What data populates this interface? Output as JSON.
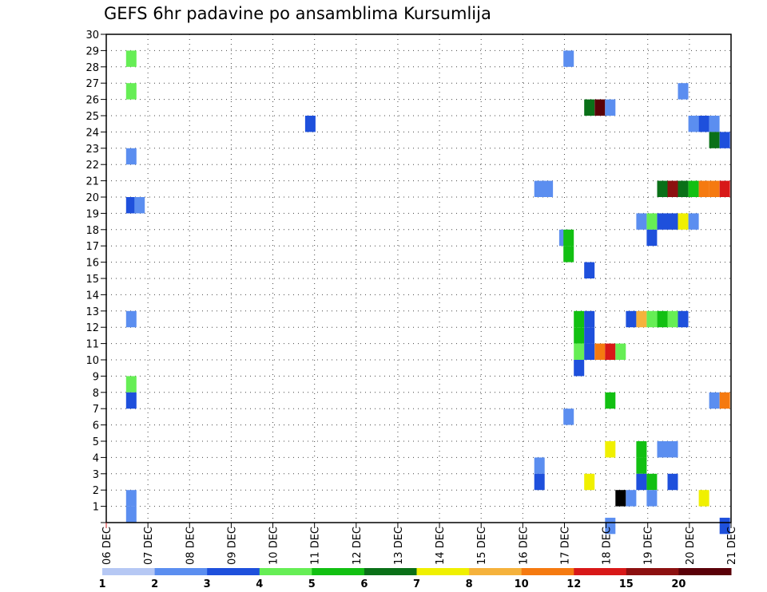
{
  "chart_data": {
    "type": "heatmap",
    "title": "GEFS 6hr padavine po ansamblima Kursumlija",
    "x_categories": [
      "06 DEC",
      "07 DEC",
      "08 DEC",
      "09 DEC",
      "10 DEC",
      "11 DEC",
      "12 DEC",
      "13 DEC",
      "14 DEC",
      "15 DEC",
      "16 DEC",
      "17 DEC",
      "18 DEC",
      "19 DEC",
      "20 DEC",
      "21 DEC"
    ],
    "y_labels": [
      "1",
      "2",
      "3",
      "4",
      "5",
      "6",
      "7",
      "8",
      "9",
      "10",
      "11",
      "12",
      "13",
      "14",
      "15",
      "16",
      "17",
      "18",
      "19",
      "20",
      "21",
      "22",
      "23",
      "24",
      "25",
      "26",
      "27",
      "28",
      "29",
      "30"
    ],
    "ylim": [
      0,
      30
    ],
    "xlim_days": [
      0,
      15
    ],
    "step_days": 0.25,
    "grid": true,
    "legend": {
      "placement": "bottom",
      "colors": [
        "#b6c8f4",
        "#5b8ef0",
        "#1e50dc",
        "#66ee55",
        "#12c012",
        "#0a7018",
        "#f0f000",
        "#f5b23c",
        "#f57a10",
        "#d81818",
        "#8c1010",
        "#5a0008"
      ],
      "labels": [
        "1",
        "2",
        "3",
        "4",
        "5",
        "6",
        "7",
        "8",
        "10",
        "12",
        "15",
        "20"
      ]
    },
    "cells": [
      {
        "t": 0.6,
        "m": 28.5,
        "v": 3
      },
      {
        "t": 0.6,
        "m": 26.5,
        "v": 3
      },
      {
        "t": 0.6,
        "m": 22.5,
        "v": 1
      },
      {
        "t": 0.6,
        "m": 19.5,
        "v": 2
      },
      {
        "t": 0.8,
        "m": 19.5,
        "v": 1
      },
      {
        "t": 0.6,
        "m": 12.5,
        "v": 1
      },
      {
        "t": 0.6,
        "m": 8.5,
        "v": 3
      },
      {
        "t": 0.6,
        "m": 7.5,
        "v": 2
      },
      {
        "t": 0.6,
        "m": 1.5,
        "v": 1
      },
      {
        "t": 0.6,
        "m": 0.5,
        "v": 1
      },
      {
        "t": 4.9,
        "m": 24.5,
        "v": 2
      },
      {
        "t": 10.4,
        "m": 20.5,
        "v": 1
      },
      {
        "t": 10.6,
        "m": 20.5,
        "v": 1
      },
      {
        "t": 10.4,
        "m": 3.5,
        "v": 1
      },
      {
        "t": 10.4,
        "m": 2.5,
        "v": 2
      },
      {
        "t": 11.1,
        "m": 28.5,
        "v": 1
      },
      {
        "t": 11.1,
        "m": 6.5,
        "v": 1
      },
      {
        "t": 11.0,
        "m": 17.5,
        "v": 1
      },
      {
        "t": 11.1,
        "m": 17.5,
        "v": 4
      },
      {
        "t": 11.1,
        "m": 16.5,
        "v": 4
      },
      {
        "t": 11.6,
        "m": 25.5,
        "v": 5
      },
      {
        "t": 11.85,
        "m": 25.5,
        "v": 11
      },
      {
        "t": 12.1,
        "m": 25.5,
        "v": 1
      },
      {
        "t": 11.6,
        "m": 15.5,
        "v": 2
      },
      {
        "t": 11.35,
        "m": 12.5,
        "v": 4
      },
      {
        "t": 11.35,
        "m": 11.5,
        "v": 4
      },
      {
        "t": 11.35,
        "m": 10.5,
        "v": 3
      },
      {
        "t": 11.35,
        "m": 9.5,
        "v": 2
      },
      {
        "t": 11.6,
        "m": 12.5,
        "v": 2
      },
      {
        "t": 11.6,
        "m": 11.5,
        "v": 2
      },
      {
        "t": 11.6,
        "m": 10.5,
        "v": 2
      },
      {
        "t": 11.85,
        "m": 10.5,
        "v": 8
      },
      {
        "t": 12.1,
        "m": 10.5,
        "v": 9
      },
      {
        "t": 12.35,
        "m": 10.5,
        "v": 3
      },
      {
        "t": 11.6,
        "m": 2.5,
        "v": 6
      },
      {
        "t": 12.1,
        "m": 7.5,
        "v": 4
      },
      {
        "t": 12.1,
        "m": 4.5,
        "v": 6
      },
      {
        "t": 12.1,
        "m": -0.2,
        "v": 1
      },
      {
        "t": 12.35,
        "m": 1.5,
        "v": 12
      },
      {
        "t": 12.6,
        "m": 1.5,
        "v": 1
      },
      {
        "t": 12.6,
        "m": 12.5,
        "v": 2
      },
      {
        "t": 12.85,
        "m": 12.5,
        "v": 7
      },
      {
        "t": 13.1,
        "m": 12.5,
        "v": 3
      },
      {
        "t": 13.35,
        "m": 12.5,
        "v": 4
      },
      {
        "t": 13.6,
        "m": 12.5,
        "v": 3
      },
      {
        "t": 13.85,
        "m": 12.5,
        "v": 2
      },
      {
        "t": 12.85,
        "m": 18.5,
        "v": 1
      },
      {
        "t": 13.1,
        "m": 18.5,
        "v": 3
      },
      {
        "t": 13.35,
        "m": 18.5,
        "v": 2
      },
      {
        "t": 13.6,
        "m": 18.5,
        "v": 2
      },
      {
        "t": 13.85,
        "m": 18.5,
        "v": 6
      },
      {
        "t": 14.1,
        "m": 18.5,
        "v": 1
      },
      {
        "t": 13.1,
        "m": 17.5,
        "v": 2
      },
      {
        "t": 12.85,
        "m": 4.5,
        "v": 4
      },
      {
        "t": 12.85,
        "m": 3.5,
        "v": 4
      },
      {
        "t": 12.85,
        "m": 2.5,
        "v": 2
      },
      {
        "t": 13.1,
        "m": 2.5,
        "v": 4
      },
      {
        "t": 13.1,
        "m": 1.5,
        "v": 1
      },
      {
        "t": 13.35,
        "m": 4.5,
        "v": 1
      },
      {
        "t": 13.6,
        "m": 4.5,
        "v": 1
      },
      {
        "t": 13.6,
        "m": 2.5,
        "v": 2
      },
      {
        "t": 13.35,
        "m": 20.5,
        "v": 5
      },
      {
        "t": 13.6,
        "m": 20.5,
        "v": 10
      },
      {
        "t": 13.85,
        "m": 20.5,
        "v": 5
      },
      {
        "t": 14.1,
        "m": 20.5,
        "v": 4
      },
      {
        "t": 14.35,
        "m": 20.5,
        "v": 8
      },
      {
        "t": 14.6,
        "m": 20.5,
        "v": 8
      },
      {
        "t": 14.85,
        "m": 20.5,
        "v": 9
      },
      {
        "t": 13.85,
        "m": 26.5,
        "v": 1
      },
      {
        "t": 14.1,
        "m": 24.5,
        "v": 1
      },
      {
        "t": 14.35,
        "m": 24.5,
        "v": 2
      },
      {
        "t": 14.6,
        "m": 24.5,
        "v": 1
      },
      {
        "t": 14.6,
        "m": 23.5,
        "v": 5
      },
      {
        "t": 14.85,
        "m": 23.5,
        "v": 2
      },
      {
        "t": 14.35,
        "m": 1.5,
        "v": 6
      },
      {
        "t": 14.6,
        "m": 7.5,
        "v": 1
      },
      {
        "t": 14.85,
        "m": 7.5,
        "v": 8
      },
      {
        "t": 14.85,
        "m": -0.2,
        "v": 2
      }
    ]
  }
}
